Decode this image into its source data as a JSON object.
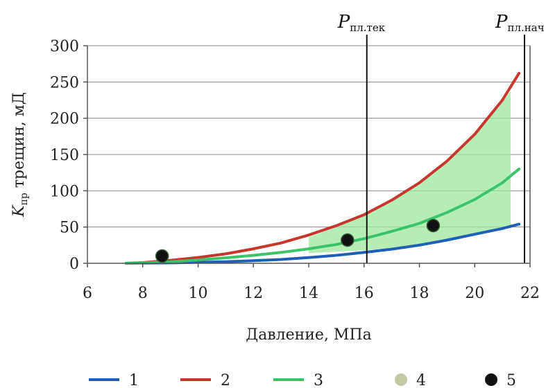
{
  "chart_data": {
    "type": "line",
    "xlabel": "Давление, МПа",
    "ylabel_main": "K",
    "ylabel_sub": "пр",
    "ylabel_rest": " трещин, мД",
    "xlim": [
      6,
      22
    ],
    "ylim": [
      0,
      300
    ],
    "xticks": [
      6,
      8,
      10,
      12,
      14,
      16,
      18,
      20,
      22
    ],
    "yticks": [
      0,
      50,
      100,
      150,
      200,
      250,
      300
    ],
    "grid": true,
    "vlines": [
      {
        "x": 16.1,
        "label_main": "P",
        "label_sub": "пл.тек"
      },
      {
        "x": 21.8,
        "label_main": "P",
        "label_sub": "пл.нач"
      }
    ],
    "series": [
      {
        "name": "1",
        "color": "#1f5fb8",
        "x": [
          7.4,
          9,
          10,
          11,
          12,
          13,
          14,
          15,
          16,
          17,
          18,
          19,
          20,
          21,
          21.6
        ],
        "y": [
          0,
          0.6,
          1.3,
          2.2,
          3.5,
          5.3,
          7.8,
          11,
          15,
          19.5,
          25,
          32,
          40,
          48,
          54
        ]
      },
      {
        "name": "2",
        "color": "#c8372d",
        "x": [
          7.4,
          8,
          9,
          10,
          11,
          12,
          13,
          14,
          15,
          16,
          17,
          18,
          19,
          20,
          21,
          21.6
        ],
        "y": [
          0,
          1,
          4,
          8,
          13,
          20,
          28,
          39,
          52,
          67,
          87,
          111,
          141,
          178,
          225,
          262
        ]
      },
      {
        "name": "3",
        "color": "#3cc46a",
        "x": [
          7.4,
          8,
          9,
          10,
          11,
          12,
          13,
          14,
          15,
          16,
          17,
          18,
          19,
          20,
          21,
          21.6
        ],
        "y": [
          0,
          0.6,
          2,
          4.5,
          7.5,
          11,
          15,
          20,
          26,
          34,
          44,
          55,
          70,
          88,
          111,
          130
        ]
      }
    ],
    "band": {
      "name": "4",
      "color": "#9be89b",
      "x": [
        14,
        15,
        16,
        17,
        18,
        19,
        20,
        21,
        21.3
      ],
      "lower": [
        14,
        16,
        18,
        21,
        25,
        32,
        40,
        48,
        51
      ],
      "upper": [
        36,
        50,
        66,
        86,
        110,
        140,
        176,
        222,
        238
      ]
    },
    "points": {
      "name": "5",
      "color": "#111111",
      "x": [
        8.7,
        15.4,
        18.5
      ],
      "y": [
        10,
        32,
        52
      ]
    },
    "legend": [
      {
        "label": "1",
        "kind": "line",
        "color": "#1f5fb8"
      },
      {
        "label": "2",
        "kind": "line",
        "color": "#c8372d"
      },
      {
        "label": "3",
        "kind": "line",
        "color": "#3cc46a"
      },
      {
        "label": "4",
        "kind": "dot",
        "color": "#c3c9a4"
      },
      {
        "label": "5",
        "kind": "dot",
        "color": "#111111"
      }
    ]
  }
}
